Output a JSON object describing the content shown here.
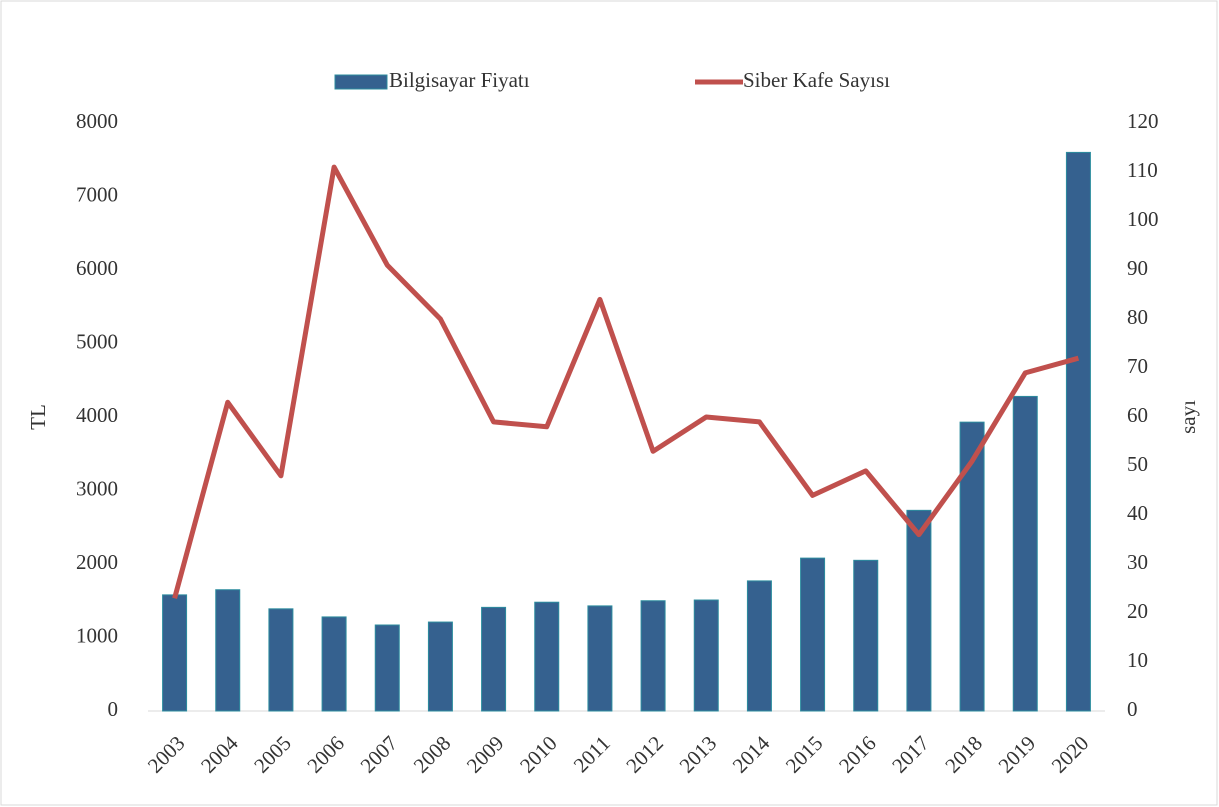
{
  "chart_data": {
    "type": "bar_line",
    "categories": [
      "2003",
      "2004",
      "2005",
      "2006",
      "2007",
      "2008",
      "2009",
      "2010",
      "2011",
      "2012",
      "2013",
      "2014",
      "2015",
      "2016",
      "2017",
      "2018",
      "2019",
      "2020"
    ],
    "series": [
      {
        "name": "Bilgisayar Fiyatı",
        "type": "bar",
        "color": "#35618f",
        "axis": "y",
        "values": [
          1580,
          1650,
          1390,
          1280,
          1170,
          1210,
          1410,
          1480,
          1430,
          1500,
          1510,
          1770,
          2080,
          2050,
          2730,
          3930,
          4280,
          7600
        ]
      },
      {
        "name": "Siber Kafe Sayısı",
        "type": "line",
        "color": "#c0504d",
        "axis": "y2",
        "values": [
          23,
          63,
          48,
          111,
          91,
          80,
          59,
          58,
          84,
          53,
          60,
          59,
          44,
          49,
          36,
          51,
          69,
          72
        ]
      }
    ],
    "ylabel": "TL",
    "y2label": "sayı",
    "ylim": [
      0,
      8000
    ],
    "yticks": [
      0,
      1000,
      2000,
      3000,
      4000,
      5000,
      6000,
      7000,
      8000
    ],
    "y2lim": [
      0,
      120
    ],
    "y2ticks": [
      0,
      10,
      20,
      30,
      40,
      50,
      60,
      70,
      80,
      90,
      100,
      110,
      120
    ],
    "legend": "top"
  }
}
